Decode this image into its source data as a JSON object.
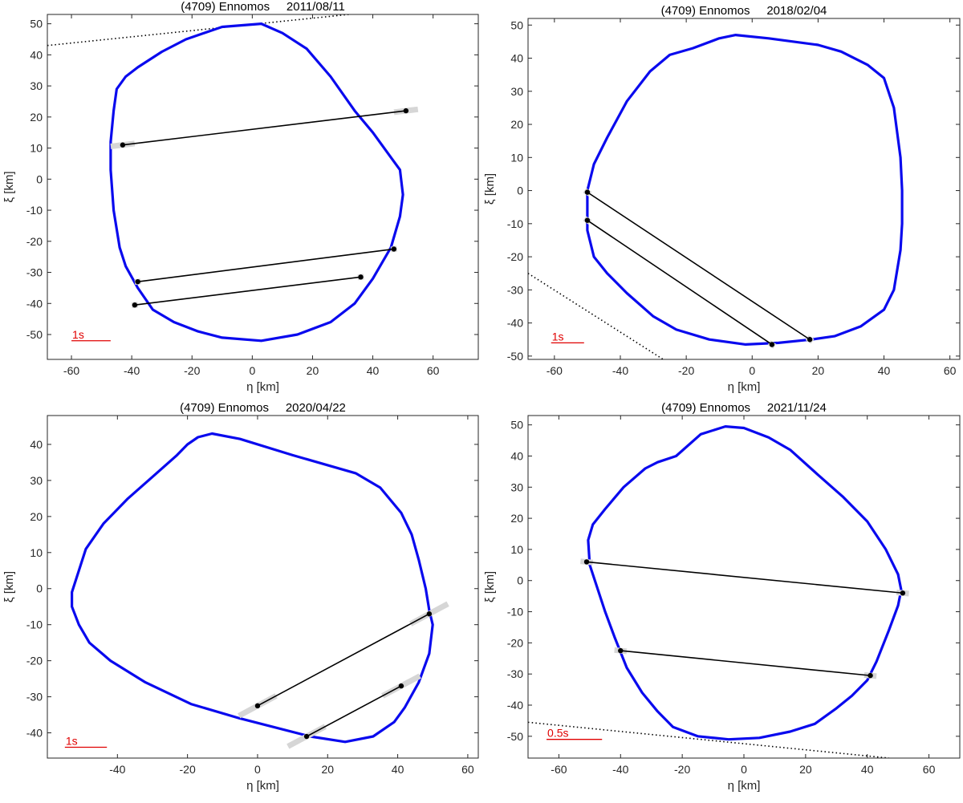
{
  "chart_data": [
    {
      "type": "line",
      "title": "(4709) Ennomos     2011/08/11",
      "xlabel": "η [km]",
      "ylabel": "ξ [km]",
      "xlim": [
        -68,
        75
      ],
      "ylim": [
        -58,
        53
      ],
      "xticks": [
        -60,
        -40,
        -20,
        0,
        20,
        40,
        60
      ],
      "yticks": [
        -50,
        -40,
        -30,
        -20,
        -10,
        0,
        10,
        20,
        30,
        40,
        50
      ],
      "grid": false,
      "colors": {
        "profile": "#0a0aee",
        "chords": "#000000",
        "uncertainty": "#d6d6d6",
        "scale_bar": "#e00000"
      },
      "scale_bar": {
        "label": "1s",
        "x": [
          -60,
          -47
        ],
        "y": -52
      },
      "profile": [
        [
          -10,
          49
        ],
        [
          3,
          50
        ],
        [
          10,
          47
        ],
        [
          18,
          42
        ],
        [
          26,
          33
        ],
        [
          34,
          22
        ],
        [
          40,
          15
        ],
        [
          46,
          7
        ],
        [
          49,
          3
        ],
        [
          50,
          -5
        ],
        [
          49,
          -12
        ],
        [
          46,
          -22
        ],
        [
          40,
          -32
        ],
        [
          34,
          -40
        ],
        [
          26,
          -46
        ],
        [
          15,
          -50
        ],
        [
          3,
          -52
        ],
        [
          -10,
          -51
        ],
        [
          -18,
          -49
        ],
        [
          -26,
          -46
        ],
        [
          -33,
          -42
        ],
        [
          -38,
          -35
        ],
        [
          -42,
          -28
        ],
        [
          -44,
          -22
        ],
        [
          -46,
          -10
        ],
        [
          -47,
          3
        ],
        [
          -47,
          12
        ],
        [
          -46,
          22
        ],
        [
          -45,
          29
        ],
        [
          -42,
          33
        ],
        [
          -38,
          36
        ],
        [
          -30,
          41
        ],
        [
          -22,
          45
        ]
      ],
      "chords": [
        {
          "x1": -43,
          "y1": 11,
          "x2": 51,
          "y2": 22,
          "err1": 4,
          "err2": 4
        },
        {
          "x1": -38,
          "y1": -33,
          "x2": 47,
          "y2": -22.5,
          "err1": 1,
          "err2": 1
        },
        {
          "x1": -39,
          "y1": -40.5,
          "x2": 36,
          "y2": -31.5,
          "err1": 1,
          "err2": 1
        }
      ],
      "negative_chords": [
        {
          "x1": -68,
          "y1": 43,
          "x2": 52,
          "y2": 55
        }
      ]
    },
    {
      "type": "line",
      "title": "(4709) Ennomos     2018/02/04",
      "xlabel": "η [km]",
      "ylabel": "ξ [km]",
      "xlim": [
        -68,
        63
      ],
      "ylim": [
        -51,
        52
      ],
      "xticks": [
        -60,
        -40,
        -20,
        0,
        20,
        40,
        60
      ],
      "yticks": [
        -50,
        -40,
        -30,
        -20,
        -10,
        0,
        10,
        20,
        30,
        40,
        50
      ],
      "grid": false,
      "colors": {
        "profile": "#0a0aee",
        "chords": "#000000",
        "uncertainty": "#d6d6d6",
        "scale_bar": "#e00000"
      },
      "scale_bar": {
        "label": "1s",
        "x": [
          -61,
          -51
        ],
        "y": -46
      },
      "profile": [
        [
          -18,
          43
        ],
        [
          -10,
          46
        ],
        [
          -5,
          47
        ],
        [
          5,
          46
        ],
        [
          20,
          44
        ],
        [
          27,
          42
        ],
        [
          35,
          38
        ],
        [
          40,
          34
        ],
        [
          43,
          25
        ],
        [
          45,
          10
        ],
        [
          45.5,
          0
        ],
        [
          45.5,
          -10
        ],
        [
          45,
          -18
        ],
        [
          43,
          -30
        ],
        [
          40,
          -36
        ],
        [
          33,
          -41
        ],
        [
          25,
          -44
        ],
        [
          18,
          -45
        ],
        [
          8,
          -46
        ],
        [
          -2,
          -46.5
        ],
        [
          -13,
          -45
        ],
        [
          -23,
          -42
        ],
        [
          -30,
          -38
        ],
        [
          -38,
          -31
        ],
        [
          -44,
          -25
        ],
        [
          -48,
          -20
        ],
        [
          -50,
          -12
        ],
        [
          -50,
          -6
        ],
        [
          -50,
          0
        ],
        [
          -48,
          8
        ],
        [
          -44,
          16
        ],
        [
          -38,
          27
        ],
        [
          -31,
          36
        ],
        [
          -25,
          41
        ]
      ],
      "chords": [
        {
          "x1": -50,
          "y1": -0.5,
          "x2": 17.5,
          "y2": -45,
          "err1": 1,
          "err2": 1
        },
        {
          "x1": -50,
          "y1": -9,
          "x2": 6,
          "y2": -46.5,
          "err1": 1,
          "err2": 1
        }
      ],
      "negative_chords": [
        {
          "x1": -68,
          "y1": -25,
          "x2": -27,
          "y2": -51
        }
      ]
    },
    {
      "type": "line",
      "title": "(4709) Ennomos     2020/04/22",
      "xlabel": "η [km]",
      "ylabel": "ξ [km]",
      "xlim": [
        -60,
        63
      ],
      "ylim": [
        -47,
        48
      ],
      "xticks": [
        -40,
        -20,
        0,
        20,
        40,
        60
      ],
      "yticks": [
        -40,
        -30,
        -20,
        -10,
        0,
        10,
        20,
        30,
        40
      ],
      "grid": false,
      "colors": {
        "profile": "#0a0aee",
        "chords": "#000000",
        "uncertainty": "#d6d6d6",
        "scale_bar": "#e00000"
      },
      "scale_bar": {
        "label": "1s",
        "x": [
          -55,
          -43
        ],
        "y": -44
      },
      "profile": [
        [
          -17,
          42
        ],
        [
          -13,
          43
        ],
        [
          -5,
          41.5
        ],
        [
          10,
          37
        ],
        [
          28,
          32
        ],
        [
          35,
          28
        ],
        [
          41,
          21
        ],
        [
          44,
          15
        ],
        [
          46,
          8
        ],
        [
          48,
          0
        ],
        [
          49,
          -6
        ],
        [
          50,
          -10
        ],
        [
          49,
          -18
        ],
        [
          46,
          -26
        ],
        [
          42,
          -33
        ],
        [
          39,
          -37
        ],
        [
          33,
          -41
        ],
        [
          25,
          -42.5
        ],
        [
          15,
          -41
        ],
        [
          -5,
          -36
        ],
        [
          -19,
          -32
        ],
        [
          -32,
          -26
        ],
        [
          -42,
          -20
        ],
        [
          -48,
          -15
        ],
        [
          -51,
          -10
        ],
        [
          -53,
          -5
        ],
        [
          -53,
          -1
        ],
        [
          -51,
          5
        ],
        [
          -49,
          11
        ],
        [
          -44,
          18
        ],
        [
          -37,
          25
        ],
        [
          -30,
          31
        ],
        [
          -23,
          37
        ],
        [
          -20,
          40
        ]
      ],
      "chords": [
        {
          "x1": 0,
          "y1": -32.5,
          "x2": 49,
          "y2": -7,
          "err1": 6,
          "err2": 6
        },
        {
          "x1": 14,
          "y1": -41,
          "x2": 41,
          "y2": -27,
          "err1": 6,
          "err2": 6
        }
      ],
      "negative_chords": []
    },
    {
      "type": "line",
      "title": "(4709) Ennomos     2021/11/24",
      "xlabel": "η [km]",
      "ylabel": "ξ [km]",
      "xlim": [
        -70,
        70
      ],
      "ylim": [
        -57,
        53
      ],
      "xticks": [
        -60,
        -40,
        -20,
        0,
        20,
        40,
        60
      ],
      "yticks": [
        -50,
        -40,
        -30,
        -20,
        -10,
        0,
        10,
        20,
        30,
        40,
        50
      ],
      "grid": false,
      "colors": {
        "profile": "#0a0aee",
        "chords": "#000000",
        "uncertainty": "#d6d6d6",
        "scale_bar": "#e00000"
      },
      "scale_bar": {
        "label": "0.5s",
        "x": [
          -64,
          -46
        ],
        "y": -51
      },
      "profile": [
        [
          -22,
          40
        ],
        [
          -14,
          47
        ],
        [
          -6,
          49.5
        ],
        [
          0,
          49
        ],
        [
          8,
          46
        ],
        [
          15,
          42
        ],
        [
          24,
          34
        ],
        [
          32,
          27
        ],
        [
          40,
          19
        ],
        [
          46,
          10
        ],
        [
          50,
          2
        ],
        [
          51,
          -3
        ],
        [
          50,
          -8
        ],
        [
          47,
          -16
        ],
        [
          43,
          -26
        ],
        [
          40,
          -32
        ],
        [
          35,
          -37
        ],
        [
          30,
          -41
        ],
        [
          23,
          -46
        ],
        [
          15,
          -48.5
        ],
        [
          5,
          -50.5
        ],
        [
          -5,
          -51
        ],
        [
          -15,
          -50
        ],
        [
          -23,
          -47
        ],
        [
          -28,
          -42
        ],
        [
          -33,
          -36
        ],
        [
          -38,
          -28
        ],
        [
          -42,
          -18
        ],
        [
          -45,
          -10
        ],
        [
          -50,
          5
        ],
        [
          -50.5,
          13
        ],
        [
          -49,
          18
        ],
        [
          -45,
          23
        ],
        [
          -39,
          30
        ],
        [
          -32,
          36
        ],
        [
          -28,
          38
        ]
      ],
      "chords": [
        {
          "x1": -51,
          "y1": 6,
          "x2": 51.5,
          "y2": -4,
          "err1": 2,
          "err2": 2
        },
        {
          "x1": -40,
          "y1": -22.5,
          "x2": 41,
          "y2": -30.5,
          "err1": 2,
          "err2": 2
        }
      ],
      "negative_chords": [
        {
          "x1": -70,
          "y1": -45.5,
          "x2": 47,
          "y2": -57
        }
      ]
    }
  ]
}
